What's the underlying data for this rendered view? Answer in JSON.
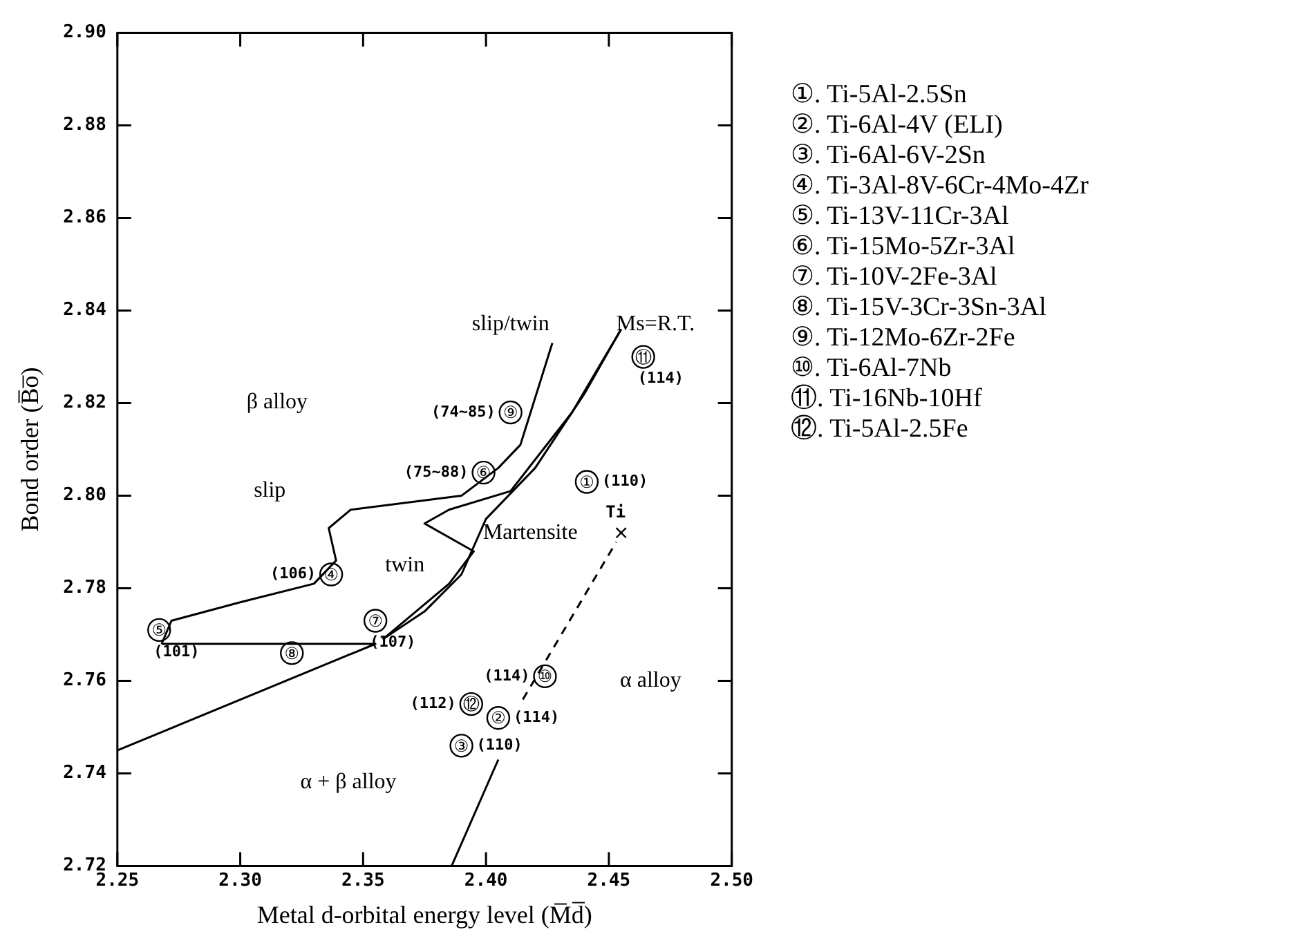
{
  "chart_data": {
    "type": "scatter",
    "xlabel": "Metal d-orbital energy level (M̅d̅)",
    "ylabel": "Bond order (B̅o̅)",
    "xlim": [
      2.25,
      2.5
    ],
    "ylim": [
      2.72,
      2.9
    ],
    "xticks": [
      2.25,
      {
        "value": 2.3,
        "label": "2.30"
      },
      2.35,
      {
        "value": 2.4,
        "label": "2.40"
      },
      2.45,
      {
        "value": 2.5,
        "label": "2.50"
      }
    ],
    "yticks": [
      2.72,
      2.74,
      2.76,
      2.78,
      {
        "value": 2.8,
        "label": "2.80"
      },
      2.82,
      2.84,
      2.86,
      2.88,
      {
        "value": 2.9,
        "label": "2.90"
      }
    ],
    "series": [
      {
        "color": "#000000",
        "marker": "circle",
        "x": [
          2.441,
          2.405,
          2.39,
          2.337,
          2.267,
          2.399,
          2.355,
          2.321,
          2.41,
          2.424,
          2.464,
          2.394
        ],
        "values": [
          2.803,
          2.752,
          2.746,
          2.783,
          2.771,
          2.805,
          2.773,
          2.766,
          2.818,
          2.761,
          2.83,
          2.755
        ],
        "value_labels": [
          "①",
          "②",
          "③",
          "④",
          "⑤",
          "⑥",
          "⑦",
          "⑧",
          "⑨",
          "⑩",
          "⑪",
          "⑫"
        ]
      },
      {
        "color": "#000000",
        "marker": "cross",
        "x": [
          2.455
        ],
        "values": [
          2.792
        ],
        "value_labels": [
          "Ti"
        ]
      },
      {
        "type": "line",
        "color": "#000000",
        "line_style": "solid",
        "x": [
          2.25,
          2.355,
          2.268
        ],
        "values": [
          2.745,
          2.768,
          2.768
        ]
      },
      {
        "type": "line",
        "color": "#000000",
        "line_style": "solid",
        "x": [
          2.268,
          2.272,
          2.3,
          2.33,
          2.339,
          2.336,
          2.345,
          2.39,
          2.405,
          2.414,
          2.427
        ],
        "values": [
          2.768,
          2.773,
          2.777,
          2.781,
          2.786,
          2.793,
          2.797,
          2.8,
          2.806,
          2.811,
          2.833
        ]
      },
      {
        "type": "line",
        "color": "#000000",
        "line_style": "solid",
        "x": [
          2.358,
          2.385,
          2.395,
          2.375,
          2.385,
          2.41,
          2.435,
          2.455
        ],
        "values": [
          2.769,
          2.781,
          2.788,
          2.794,
          2.797,
          2.801,
          2.818,
          2.836
        ]
      },
      {
        "type": "line",
        "color": "#000000",
        "line_style": "solid",
        "x": [
          2.358,
          2.375,
          2.39,
          2.4,
          2.42,
          2.44,
          2.455
        ],
        "values": [
          2.769,
          2.775,
          2.783,
          2.795,
          2.806,
          2.822,
          2.836
        ]
      },
      {
        "type": "line",
        "color": "#000000",
        "line_style": "solid",
        "x": [
          2.386,
          2.405
        ],
        "values": [
          2.72,
          2.743
        ]
      },
      {
        "type": "line",
        "color": "#000000",
        "line_style": "dashed",
        "x": [
          2.415,
          2.453
        ],
        "values": [
          2.756,
          2.79
        ]
      }
    ],
    "annotations": [
      "β alloy",
      "slip/twin",
      "Ms=R.T.",
      "slip",
      "twin",
      "Martensite",
      "α alloy",
      "α + β alloy",
      {
        "text": "(110)",
        "x": 2.441,
        "y": 2.803
      },
      {
        "text": "(114)",
        "x": 2.405,
        "y": 2.752
      },
      {
        "text": "(110)",
        "x": 2.39,
        "y": 2.746
      },
      {
        "text": "(106)",
        "x": 2.337,
        "y": 2.783
      },
      {
        "text": "(101)",
        "x": 2.267,
        "y": 2.771
      },
      {
        "text": "(75~88)",
        "x": 2.399,
        "y": 2.805
      },
      {
        "text": "(107)",
        "x": 2.355,
        "y": 2.773
      },
      {
        "text": "(74~85)",
        "x": 2.41,
        "y": 2.818
      },
      {
        "text": "(114)",
        "x": 2.424,
        "y": 2.761
      },
      {
        "text": "(114)",
        "x": 2.464,
        "y": 2.83
      },
      {
        "text": "(112)",
        "x": 2.394,
        "y": 2.755
      },
      "①. Ti-5Al-2.5Sn",
      "②. Ti-6Al-4V (ELI)",
      "③. Ti-6Al-6V-2Sn",
      "④. Ti-3Al-8V-6Cr-4Mo-4Zr",
      "⑤. Ti-13V-11Cr-3Al",
      "⑥. Ti-15Mo-5Zr-3Al",
      "⑦. Ti-10V-2Fe-3Al",
      "⑧. Ti-15V-3Cr-3Sn-3Al",
      "⑨. Ti-12Mo-6Zr-2Fe",
      "⑩. Ti-6Al-7Nb",
      "⑪. Ti-16Nb-10Hf",
      "⑫. Ti-5Al-2.5Fe"
    ]
  }
}
